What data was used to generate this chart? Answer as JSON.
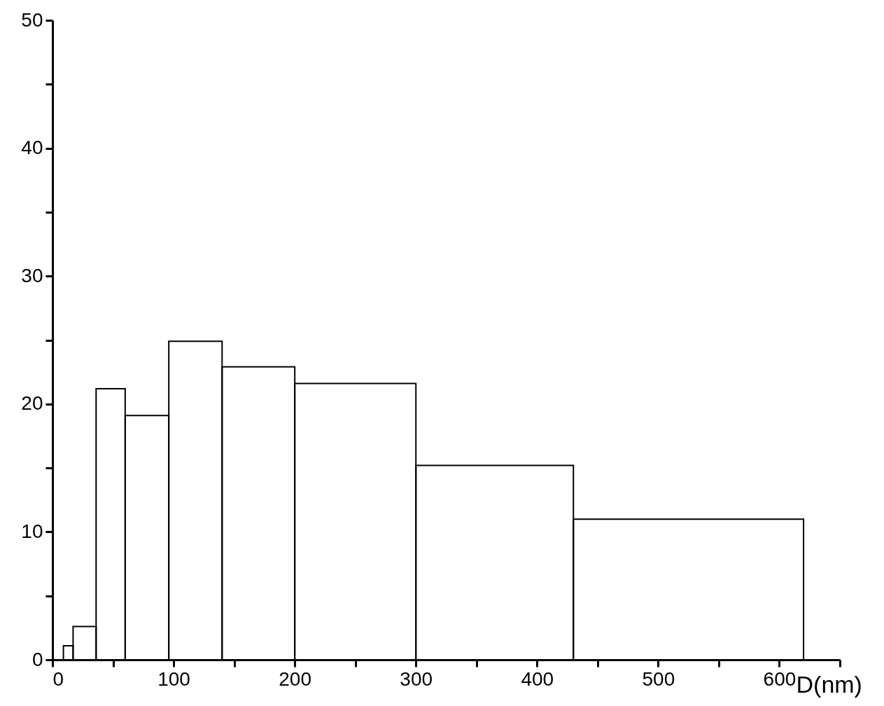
{
  "chart_data": {
    "type": "histogram",
    "xlabel": "D(nm)",
    "bins": [
      9,
      17,
      36,
      60,
      96,
      140,
      200,
      300,
      430,
      620
    ],
    "values": [
      1.1,
      2.6,
      21.2,
      19.1,
      24.9,
      22.9,
      21.6,
      15.2,
      11.0
    ],
    "color": "#000000",
    "xlim": [
      0,
      650
    ],
    "ylim": [
      0,
      50
    ],
    "xticks": [
      0,
      {
        "value": 50,
        "label": null
      },
      100,
      {
        "value": 150,
        "label": null
      },
      200,
      {
        "value": 250,
        "label": null
      },
      300,
      {
        "value": 350,
        "label": null
      },
      400,
      {
        "value": 450,
        "label": null
      },
      500,
      {
        "value": 550,
        "label": null
      },
      600,
      {
        "value": 650,
        "label": null
      }
    ],
    "yticks": [
      0,
      {
        "value": 5,
        "label": null
      },
      10,
      {
        "value": 15,
        "label": null
      },
      20,
      {
        "value": 25,
        "label": null
      },
      30,
      {
        "value": 35,
        "label": null
      },
      40,
      {
        "value": 45,
        "label": null
      },
      50
    ],
    "grid": false
  }
}
